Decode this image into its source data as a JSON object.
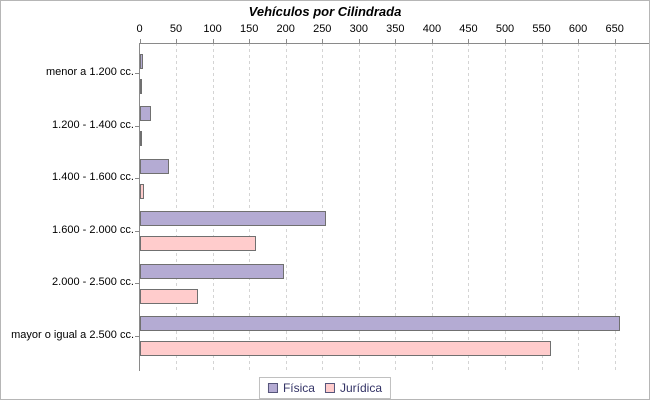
{
  "chart_data": {
    "type": "bar",
    "orientation": "horizontal",
    "title": "Vehículos por Cilindrada",
    "categories": [
      "menor a 1.200 cc.",
      "1.200 - 1.400 cc.",
      "1.400 - 1.600 cc.",
      "1.600 - 2.000 cc.",
      "2.000 - 2.500 cc.",
      "mayor o igual a 2.500 cc."
    ],
    "series": [
      {
        "name": "Física",
        "color": "#b4abd3",
        "border_color": "#707070",
        "values": [
          4,
          15,
          40,
          255,
          197,
          657
        ]
      },
      {
        "name": "Jurídica",
        "color": "#ffcccc",
        "border_color": "#707070",
        "values": [
          1,
          1,
          6,
          159,
          79,
          562
        ]
      }
    ],
    "value_axis": {
      "position": "top",
      "min": 0,
      "max": 650,
      "tick_step": 50,
      "ticks": [
        0,
        50,
        100,
        150,
        200,
        250,
        300,
        350,
        400,
        450,
        500,
        550,
        600,
        650
      ]
    },
    "grid": "vertical-dashed",
    "legend_position": "bottom",
    "colors": {
      "axis_line": "#8a8a8a",
      "gridline": "#d4d4d4",
      "title_text": "#000000",
      "legend_text": "#333366",
      "background": "#ffffff"
    }
  }
}
